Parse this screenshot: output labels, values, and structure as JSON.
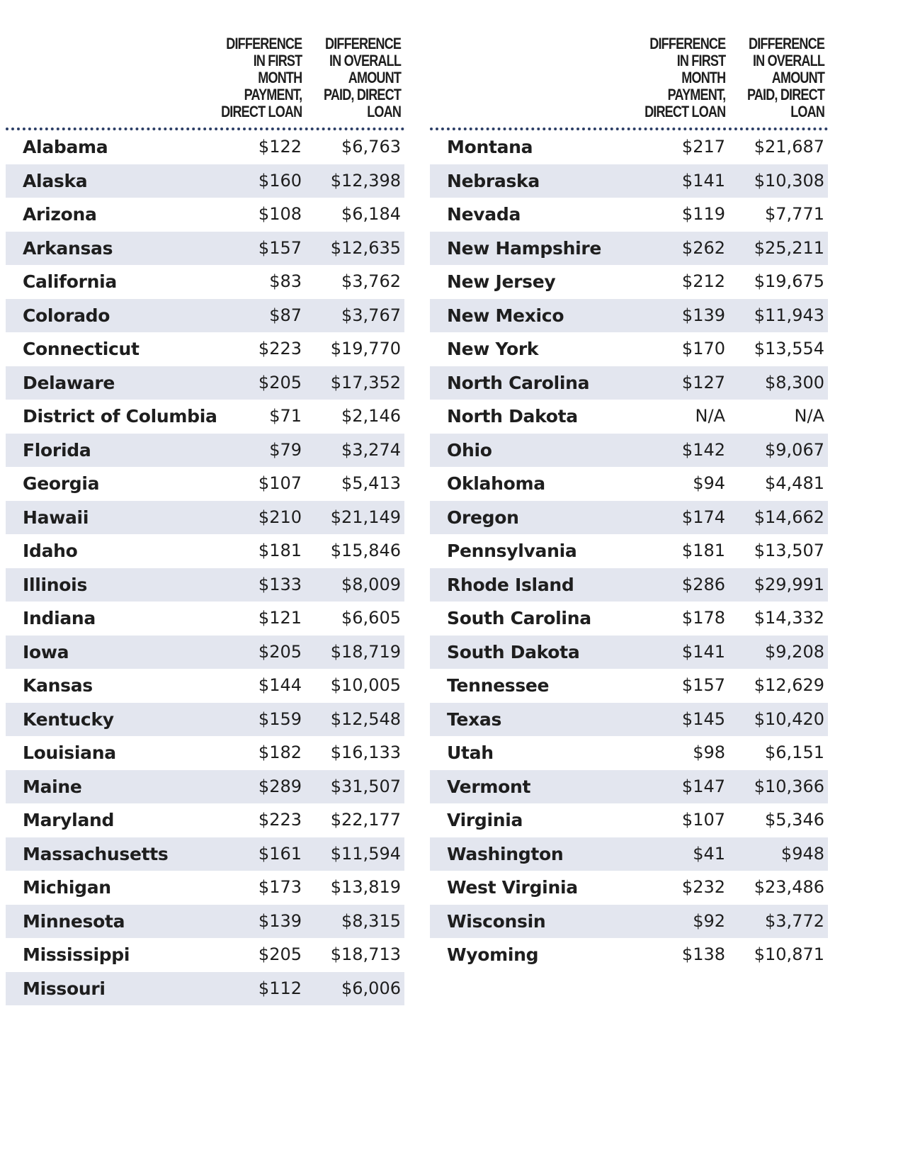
{
  "headers": {
    "col1": [
      "DIFFERENCE",
      "IN FIRST",
      "MONTH",
      "PAYMENT,",
      "DIRECT LOAN"
    ],
    "col2": [
      "DIFFERENCE",
      "IN OVERALL",
      "AMOUNT",
      "PAID, DIRECT",
      "LOAN"
    ]
  },
  "left": [
    {
      "state": "Alabama",
      "first_month": "$122",
      "overall": "$6,763"
    },
    {
      "state": "Alaska",
      "first_month": "$160",
      "overall": "$12,398"
    },
    {
      "state": "Arizona",
      "first_month": "$108",
      "overall": "$6,184"
    },
    {
      "state": "Arkansas",
      "first_month": "$157",
      "overall": "$12,635"
    },
    {
      "state": "California",
      "first_month": "$83",
      "overall": "$3,762"
    },
    {
      "state": "Colorado",
      "first_month": "$87",
      "overall": "$3,767"
    },
    {
      "state": "Connecticut",
      "first_month": "$223",
      "overall": "$19,770"
    },
    {
      "state": "Delaware",
      "first_month": "$205",
      "overall": "$17,352"
    },
    {
      "state": "District of Columbia",
      "first_month": "$71",
      "overall": "$2,146"
    },
    {
      "state": "Florida",
      "first_month": "$79",
      "overall": "$3,274"
    },
    {
      "state": "Georgia",
      "first_month": "$107",
      "overall": "$5,413"
    },
    {
      "state": "Hawaii",
      "first_month": "$210",
      "overall": "$21,149"
    },
    {
      "state": "Idaho",
      "first_month": "$181",
      "overall": "$15,846"
    },
    {
      "state": "Illinois",
      "first_month": "$133",
      "overall": "$8,009"
    },
    {
      "state": "Indiana",
      "first_month": "$121",
      "overall": "$6,605"
    },
    {
      "state": "Iowa",
      "first_month": "$205",
      "overall": "$18,719"
    },
    {
      "state": "Kansas",
      "first_month": "$144",
      "overall": "$10,005"
    },
    {
      "state": "Kentucky",
      "first_month": "$159",
      "overall": "$12,548"
    },
    {
      "state": "Louisiana",
      "first_month": "$182",
      "overall": "$16,133"
    },
    {
      "state": "Maine",
      "first_month": "$289",
      "overall": "$31,507"
    },
    {
      "state": "Maryland",
      "first_month": "$223",
      "overall": "$22,177"
    },
    {
      "state": "Massachusetts",
      "first_month": "$161",
      "overall": "$11,594"
    },
    {
      "state": "Michigan",
      "first_month": "$173",
      "overall": "$13,819"
    },
    {
      "state": "Minnesota",
      "first_month": "$139",
      "overall": "$8,315"
    },
    {
      "state": "Mississippi",
      "first_month": "$205",
      "overall": "$18,713"
    },
    {
      "state": "Missouri",
      "first_month": "$112",
      "overall": "$6,006"
    }
  ],
  "right": [
    {
      "state": "Montana",
      "first_month": "$217",
      "overall": "$21,687"
    },
    {
      "state": "Nebraska",
      "first_month": "$141",
      "overall": "$10,308"
    },
    {
      "state": "Nevada",
      "first_month": "$119",
      "overall": "$7,771"
    },
    {
      "state": "New Hampshire",
      "first_month": "$262",
      "overall": "$25,211"
    },
    {
      "state": "New Jersey",
      "first_month": "$212",
      "overall": "$19,675"
    },
    {
      "state": "New Mexico",
      "first_month": "$139",
      "overall": "$11,943"
    },
    {
      "state": "New York",
      "first_month": "$170",
      "overall": "$13,554"
    },
    {
      "state": "North Carolina",
      "first_month": "$127",
      "overall": "$8,300"
    },
    {
      "state": "North Dakota",
      "first_month": "N/A",
      "overall": "N/A"
    },
    {
      "state": "Ohio",
      "first_month": "$142",
      "overall": "$9,067"
    },
    {
      "state": "Oklahoma",
      "first_month": "$94",
      "overall": "$4,481"
    },
    {
      "state": "Oregon",
      "first_month": "$174",
      "overall": "$14,662"
    },
    {
      "state": "Pennsylvania",
      "first_month": "$181",
      "overall": "$13,507"
    },
    {
      "state": "Rhode Island",
      "first_month": "$286",
      "overall": "$29,991"
    },
    {
      "state": "South Carolina",
      "first_month": "$178",
      "overall": "$14,332"
    },
    {
      "state": "South Dakota",
      "first_month": "$141",
      "overall": "$9,208"
    },
    {
      "state": "Tennessee",
      "first_month": "$157",
      "overall": "$12,629"
    },
    {
      "state": "Texas",
      "first_month": "$145",
      "overall": "$10,420"
    },
    {
      "state": "Utah",
      "first_month": "$98",
      "overall": "$6,151"
    },
    {
      "state": "Vermont",
      "first_month": "$147",
      "overall": "$10,366"
    },
    {
      "state": "Virginia",
      "first_month": "$107",
      "overall": "$5,346"
    },
    {
      "state": "Washington",
      "first_month": "$41",
      "overall": "$948"
    },
    {
      "state": "West Virginia",
      "first_month": "$232",
      "overall": "$23,486"
    },
    {
      "state": "Wisconsin",
      "first_month": "$92",
      "overall": "$3,772"
    },
    {
      "state": "Wyoming",
      "first_month": "$138",
      "overall": "$10,871"
    }
  ],
  "colors": {
    "stripe": "#e3e6ef",
    "rule": "#2c3e66",
    "text": "#1e1e1e"
  }
}
